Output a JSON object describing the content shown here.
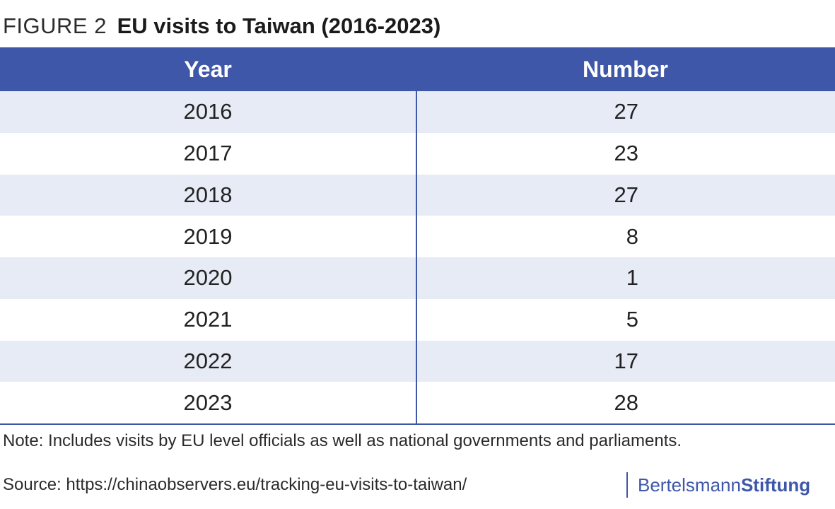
{
  "figure": {
    "label": "FIGURE 2",
    "title": "EU visits to Taiwan (2016-2023)"
  },
  "table": {
    "headers": [
      "Year",
      "Number"
    ],
    "rows": [
      [
        "2016",
        "27"
      ],
      [
        "2017",
        "23"
      ],
      [
        "2018",
        "27"
      ],
      [
        "2019",
        "8"
      ],
      [
        "2020",
        "1"
      ],
      [
        "2021",
        "5"
      ],
      [
        "2022",
        "17"
      ],
      [
        "2023",
        "28"
      ]
    ]
  },
  "chart_data": {
    "type": "table",
    "title": "EU visits to Taiwan (2016-2023)",
    "columns": [
      "Year",
      "Number"
    ],
    "categories": [
      "2016",
      "2017",
      "2018",
      "2019",
      "2020",
      "2021",
      "2022",
      "2023"
    ],
    "values": [
      27,
      23,
      27,
      8,
      1,
      5,
      17,
      28
    ]
  },
  "footer": {
    "note": "Note: Includes visits by EU level officials as well as national governments and parliaments.",
    "source": "Source: https://chinaobservers.eu/tracking-eu-visits-to-taiwan/",
    "brand_part1": "Bertelsmann",
    "brand_part2": "Stiftung"
  },
  "colors": {
    "header_bg": "#3e57a8",
    "stripe_bg": "#e6ebf6",
    "divider": "#3e57a8"
  }
}
